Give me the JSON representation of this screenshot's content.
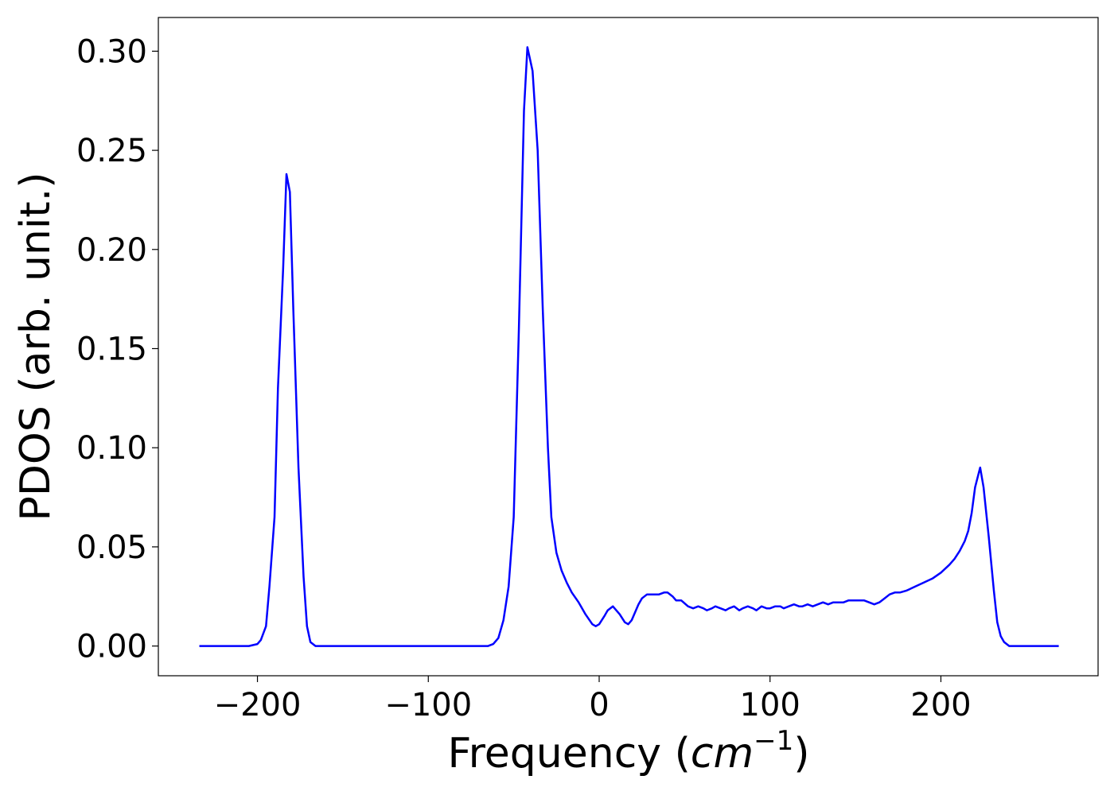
{
  "chart_data": {
    "type": "line",
    "xlabel_main": "Frequency (",
    "xlabel_unit": "cm",
    "xlabel_exp": "−1",
    "xlabel_close": ")",
    "ylabel": "PDOS (arb. unit.)",
    "xlim": [
      -258,
      292
    ],
    "ylim": [
      -0.015,
      0.317
    ],
    "xticks": [
      -200,
      -100,
      0,
      100,
      200
    ],
    "xtick_labels": [
      "−200",
      "−100",
      "0",
      "100",
      "200"
    ],
    "yticks": [
      0.0,
      0.05,
      0.1,
      0.15,
      0.2,
      0.25,
      0.3
    ],
    "ytick_labels": [
      "0.00",
      "0.05",
      "0.10",
      "0.15",
      "0.20",
      "0.25",
      "0.30"
    ],
    "grid": false,
    "legend": "none",
    "series": [
      {
        "color": "#0000ff",
        "x": [
          -234,
          -220,
          -205,
          -200,
          -198,
          -195,
          -193,
          -190,
          -188,
          -185,
          -183,
          -181,
          -179,
          -176,
          -173,
          -171,
          -169,
          -166,
          -160,
          -140,
          -110,
          -80,
          -65,
          -62,
          -59,
          -56,
          -53,
          -50,
          -47,
          -44,
          -42,
          -39,
          -36,
          -33,
          -30,
          -28,
          -25,
          -22,
          -19,
          -16,
          -12,
          -8,
          -4,
          -2,
          0,
          3,
          5,
          8,
          10,
          12,
          15,
          17,
          19,
          21,
          23,
          25,
          28,
          31,
          35,
          38,
          40,
          43,
          45,
          48,
          52,
          55,
          58,
          61,
          63,
          66,
          68,
          71,
          74,
          76,
          79,
          82,
          84,
          87,
          90,
          92,
          95,
          98,
          100,
          103,
          106,
          108,
          111,
          114,
          117,
          119,
          122,
          125,
          128,
          131,
          134,
          137,
          140,
          143,
          146,
          149,
          152,
          155,
          158,
          161,
          164,
          167,
          170,
          173,
          176,
          180,
          185,
          190,
          195,
          200,
          205,
          208,
          211,
          214,
          216,
          218,
          220,
          223,
          225,
          228,
          231,
          233,
          235,
          237,
          240,
          245,
          260,
          269
        ],
        "y": [
          0.0,
          0.0,
          0.0,
          0.001,
          0.003,
          0.01,
          0.03,
          0.065,
          0.13,
          0.19,
          0.238,
          0.229,
          0.17,
          0.09,
          0.035,
          0.01,
          0.002,
          0.0,
          0.0,
          0.0,
          0.0,
          0.0,
          0.0,
          0.001,
          0.004,
          0.013,
          0.03,
          0.065,
          0.16,
          0.27,
          0.302,
          0.29,
          0.25,
          0.17,
          0.1,
          0.065,
          0.047,
          0.038,
          0.032,
          0.027,
          0.022,
          0.016,
          0.011,
          0.01,
          0.011,
          0.015,
          0.018,
          0.02,
          0.018,
          0.016,
          0.012,
          0.011,
          0.013,
          0.017,
          0.021,
          0.024,
          0.026,
          0.026,
          0.026,
          0.027,
          0.027,
          0.025,
          0.023,
          0.023,
          0.02,
          0.019,
          0.02,
          0.019,
          0.018,
          0.019,
          0.02,
          0.019,
          0.018,
          0.019,
          0.02,
          0.018,
          0.019,
          0.02,
          0.019,
          0.018,
          0.02,
          0.019,
          0.019,
          0.02,
          0.02,
          0.019,
          0.02,
          0.021,
          0.02,
          0.02,
          0.021,
          0.02,
          0.021,
          0.022,
          0.021,
          0.022,
          0.022,
          0.022,
          0.023,
          0.023,
          0.023,
          0.023,
          0.022,
          0.021,
          0.022,
          0.024,
          0.026,
          0.027,
          0.027,
          0.028,
          0.03,
          0.032,
          0.034,
          0.037,
          0.041,
          0.044,
          0.048,
          0.053,
          0.058,
          0.067,
          0.08,
          0.09,
          0.08,
          0.055,
          0.028,
          0.012,
          0.005,
          0.002,
          0.0,
          0.0,
          0.0,
          0.0
        ]
      }
    ]
  }
}
